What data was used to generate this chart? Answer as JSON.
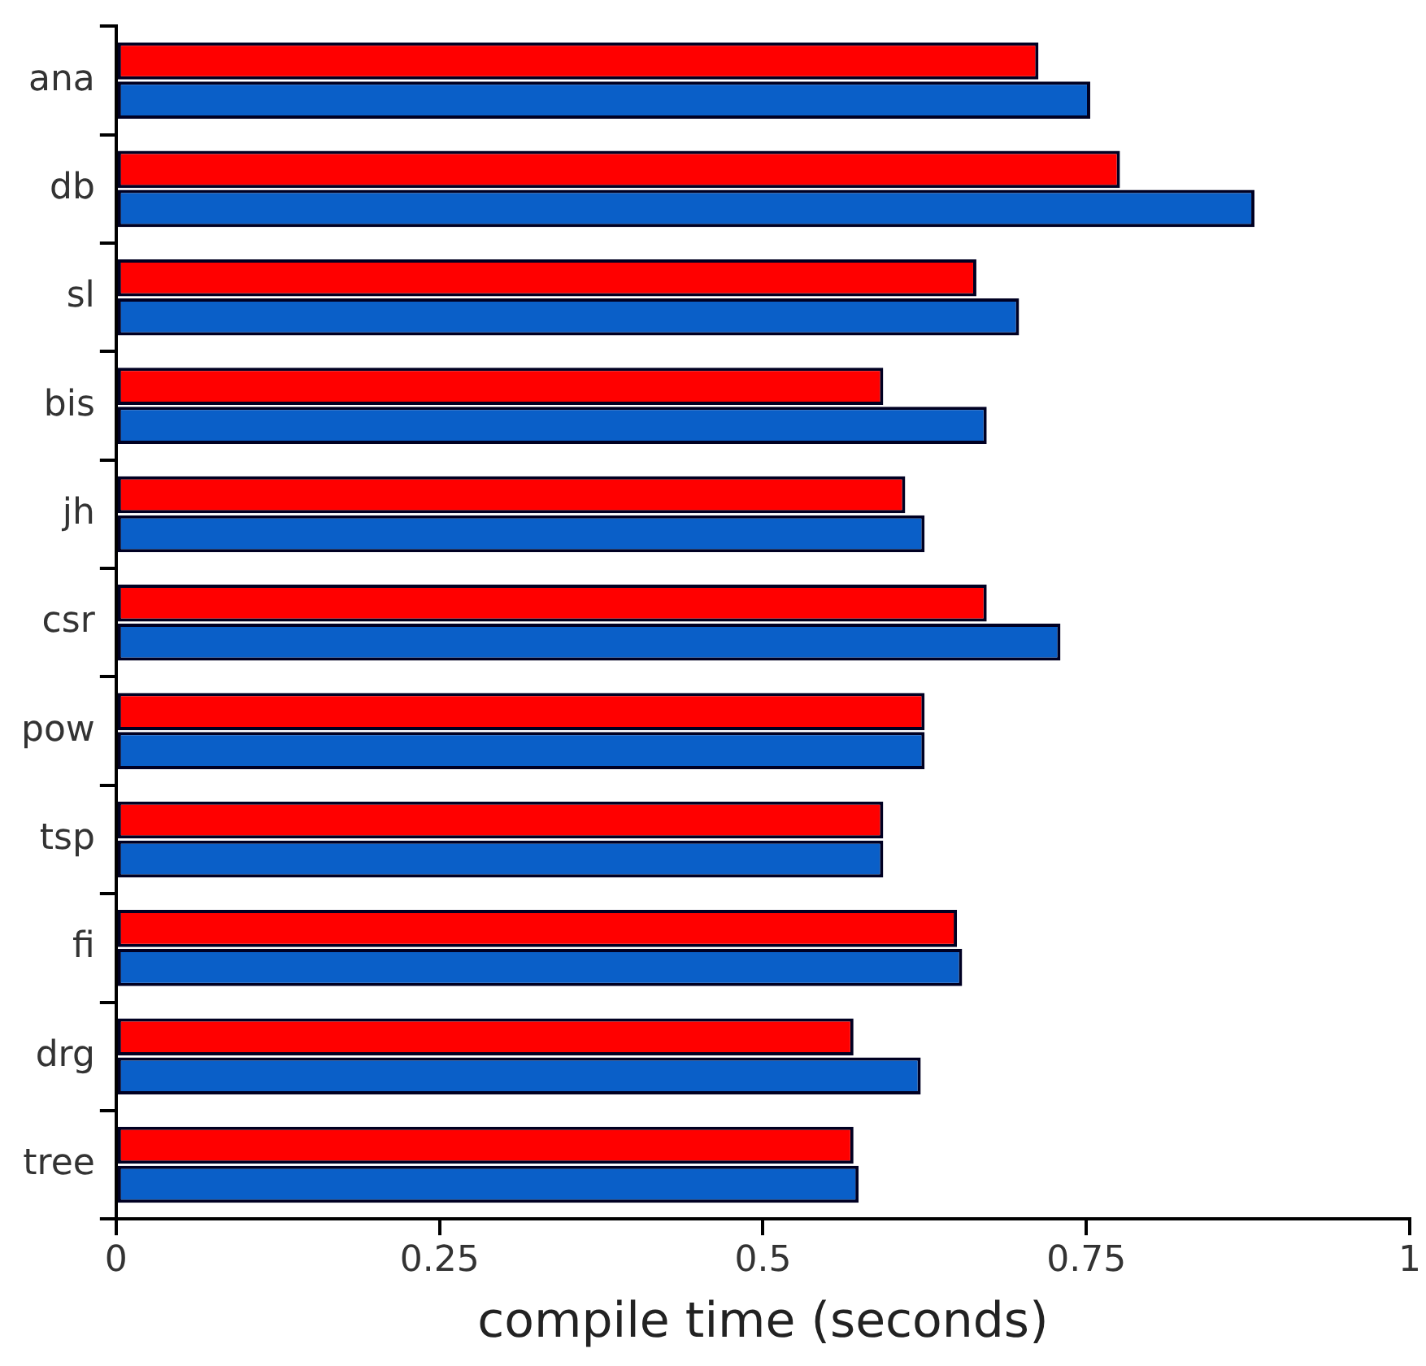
{
  "chart_data": {
    "type": "bar",
    "orientation": "horizontal",
    "xlabel": "compile time (seconds)",
    "categories": [
      "ana",
      "db",
      "sl",
      "bis",
      "jh",
      "csr",
      "pow",
      "tsp",
      "fi",
      "drg",
      "tree"
    ],
    "series": [
      {
        "color": "#ff0000",
        "values": [
          0.713,
          0.776,
          0.665,
          0.593,
          0.61,
          0.673,
          0.625,
          0.593,
          0.65,
          0.57,
          0.57
        ]
      },
      {
        "color": "#0a5fc8",
        "values": [
          0.753,
          0.88,
          0.698,
          0.673,
          0.625,
          0.73,
          0.625,
          0.593,
          0.654,
          0.622,
          0.574
        ]
      }
    ],
    "xlim": [
      0,
      1
    ],
    "xticks": [
      0,
      0.25,
      0.5,
      0.75,
      1
    ],
    "grid": false,
    "legend": false
  }
}
